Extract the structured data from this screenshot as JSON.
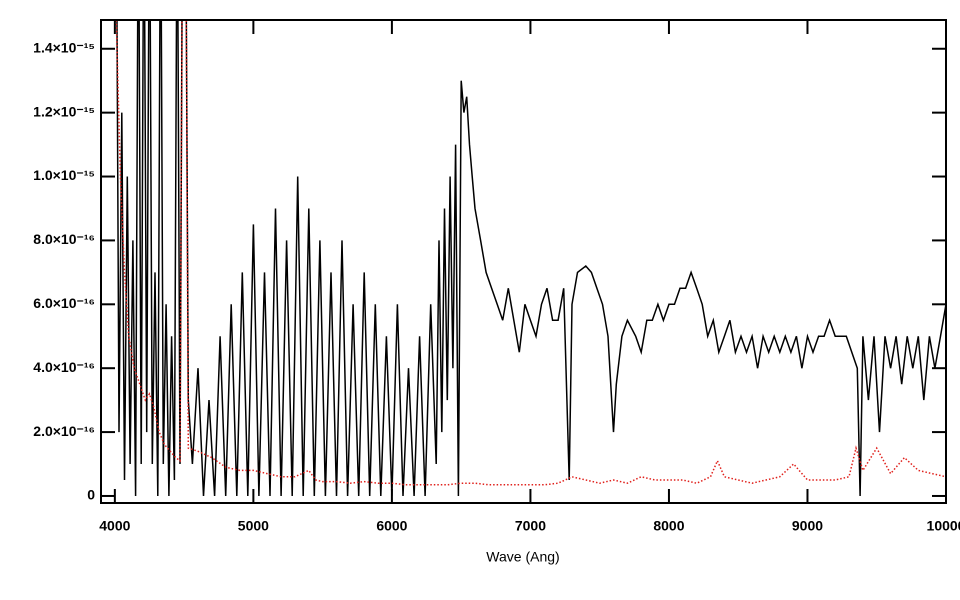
{
  "chart_data": {
    "type": "line",
    "x_label": "Wave (Ang)",
    "xlim": [
      3900,
      10000
    ],
    "ylim": [
      -2.2e-17,
      1.49e-15
    ],
    "xticks": [
      4000,
      5000,
      6000,
      7000,
      8000,
      9000,
      10000
    ],
    "yticks": [
      {
        "value": 0,
        "label": "0"
      },
      {
        "value": 2e-16,
        "label": "2.0×10⁻¹⁶"
      },
      {
        "value": 4e-16,
        "label": "4.0×10⁻¹⁶"
      },
      {
        "value": 6e-16,
        "label": "6.0×10⁻¹⁶"
      },
      {
        "value": 8e-16,
        "label": "8.0×10⁻¹⁶"
      },
      {
        "value": 1e-15,
        "label": "1.0×10⁻¹⁵"
      },
      {
        "value": 1.2e-15,
        "label": "1.2×10⁻¹⁵"
      },
      {
        "value": 1.4e-15,
        "label": "1.4×10⁻¹⁵"
      }
    ],
    "series": [
      {
        "color": "#000000",
        "dash": false,
        "x": [
          4010,
          4030,
          4050,
          4070,
          4090,
          4110,
          4130,
          4150,
          4170,
          4190,
          4210,
          4230,
          4250,
          4270,
          4290,
          4310,
          4330,
          4350,
          4370,
          4390,
          4410,
          4430,
          4450,
          4470,
          4490,
          4510,
          4530,
          4560,
          4600,
          4640,
          4680,
          4720,
          4760,
          4800,
          4840,
          4880,
          4920,
          4960,
          5000,
          5040,
          5080,
          5120,
          5160,
          5200,
          5240,
          5280,
          5320,
          5360,
          5400,
          5440,
          5480,
          5520,
          5560,
          5600,
          5640,
          5680,
          5720,
          5760,
          5800,
          5840,
          5880,
          5920,
          5960,
          6000,
          6040,
          6080,
          6120,
          6160,
          6200,
          6240,
          6280,
          6320,
          6340,
          6360,
          6380,
          6400,
          6420,
          6440,
          6460,
          6480,
          6500,
          6520,
          6540,
          6560,
          6580,
          6600,
          6640,
          6680,
          6720,
          6760,
          6800,
          6840,
          6880,
          6920,
          6960,
          7000,
          7040,
          7080,
          7120,
          7160,
          7200,
          7240,
          7280,
          7300,
          7340,
          7400,
          7440,
          7480,
          7520,
          7560,
          7600,
          7620,
          7660,
          7700,
          7760,
          7800,
          7840,
          7880,
          7920,
          7960,
          8000,
          8040,
          8080,
          8120,
          8160,
          8200,
          8240,
          8280,
          8320,
          8360,
          8400,
          8440,
          8480,
          8520,
          8560,
          8600,
          8640,
          8680,
          8720,
          8760,
          8800,
          8840,
          8880,
          8920,
          8960,
          9000,
          9040,
          9080,
          9120,
          9160,
          9200,
          9240,
          9280,
          9320,
          9360,
          9380,
          9400,
          9440,
          9480,
          9520,
          9560,
          9600,
          9640,
          9680,
          9720,
          9760,
          9800,
          9840,
          9880,
          9920,
          9960,
          10000
        ],
        "values": [
          2e-15,
          2e-16,
          1.2e-15,
          5e-17,
          1e-15,
          1e-16,
          8e-16,
          0,
          2e-15,
          1e-16,
          2e-15,
          2e-16,
          2e-15,
          1e-16,
          7e-16,
          0,
          2e-15,
          1e-16,
          6e-16,
          0,
          5e-16,
          5e-17,
          2e-15,
          1e-16,
          2e-15,
          2e-15,
          3e-16,
          1e-16,
          4e-16,
          0,
          3e-16,
          0,
          5e-16,
          0,
          6e-16,
          0,
          7e-16,
          0,
          8.5e-16,
          0,
          7e-16,
          0,
          9e-16,
          0,
          8e-16,
          0,
          1e-15,
          0,
          9e-16,
          0,
          8e-16,
          0,
          7e-16,
          0,
          8e-16,
          0,
          6e-16,
          0,
          7e-16,
          0,
          6e-16,
          0,
          5e-16,
          0,
          6e-16,
          0,
          4e-16,
          0,
          5e-16,
          0,
          6e-16,
          1e-16,
          8e-16,
          2e-16,
          9e-16,
          3e-16,
          1e-15,
          4e-16,
          1.1e-15,
          0,
          1.3e-15,
          1.2e-15,
          1.25e-15,
          1.1e-15,
          1e-15,
          9e-16,
          8e-16,
          7e-16,
          6.5e-16,
          6e-16,
          5.5e-16,
          6.5e-16,
          5.5e-16,
          4.5e-16,
          6e-16,
          5.5e-16,
          5e-16,
          6e-16,
          6.5e-16,
          5.5e-16,
          5.5e-16,
          6.5e-16,
          5e-17,
          6e-16,
          7e-16,
          7.2e-16,
          7e-16,
          6.5e-16,
          6e-16,
          5e-16,
          2e-16,
          3.5e-16,
          5e-16,
          5.5e-16,
          5e-16,
          4.5e-16,
          5.5e-16,
          5.5e-16,
          6e-16,
          5.5e-16,
          6e-16,
          6e-16,
          6.5e-16,
          6.5e-16,
          7e-16,
          6.5e-16,
          6e-16,
          5e-16,
          5.5e-16,
          4.5e-16,
          5e-16,
          5.5e-16,
          4.5e-16,
          5e-16,
          4.5e-16,
          5e-16,
          4e-16,
          5e-16,
          4.5e-16,
          5e-16,
          4.5e-16,
          5e-16,
          4.5e-16,
          5e-16,
          4e-16,
          5e-16,
          4.5e-16,
          5e-16,
          5e-16,
          5.5e-16,
          5e-16,
          5e-16,
          5e-16,
          4.5e-16,
          4e-16,
          0,
          5e-16,
          3e-16,
          5e-16,
          2e-16,
          5e-16,
          4e-16,
          5e-16,
          3.5e-16,
          5e-16,
          4e-16,
          5e-16,
          3e-16,
          5e-16,
          4e-16,
          5e-16,
          6e-16
        ]
      },
      {
        "color": "#e0201b",
        "dash": true,
        "x": [
          4010,
          4040,
          4070,
          4100,
          4140,
          4180,
          4220,
          4250,
          4280,
          4320,
          4360,
          4400,
          4440,
          4470,
          4490,
          4510,
          4530,
          4600,
          4700,
          4800,
          4900,
          5000,
          5100,
          5200,
          5300,
          5400,
          5450,
          5500,
          5600,
          5700,
          5800,
          5900,
          6000,
          6100,
          6200,
          6300,
          6400,
          6500,
          6600,
          6700,
          6800,
          6900,
          7000,
          7100,
          7200,
          7300,
          7400,
          7500,
          7600,
          7700,
          7800,
          7900,
          8000,
          8100,
          8200,
          8300,
          8350,
          8400,
          8500,
          8600,
          8700,
          8800,
          8900,
          9000,
          9100,
          9200,
          9300,
          9350,
          9400,
          9500,
          9600,
          9700,
          9800,
          9900,
          10000
        ],
        "values": [
          1.5e-15,
          1e-15,
          7e-16,
          5e-16,
          4e-16,
          3.5e-16,
          3e-16,
          3.2e-16,
          2.8e-16,
          2e-16,
          1.6e-16,
          1.4e-16,
          1.2e-16,
          1.1e-16,
          2e-15,
          2e-15,
          1.5e-16,
          1.4e-16,
          1.2e-16,
          9e-17,
          8e-17,
          8e-17,
          7e-17,
          6e-17,
          6e-17,
          8e-17,
          5e-17,
          4.5e-17,
          4.5e-17,
          4e-17,
          4.5e-17,
          4e-17,
          4e-17,
          3.5e-17,
          3.5e-17,
          3.5e-17,
          3.5e-17,
          4e-17,
          4e-17,
          3.5e-17,
          3.5e-17,
          3.5e-17,
          3.5e-17,
          3.5e-17,
          4e-17,
          6e-17,
          5e-17,
          4e-17,
          5e-17,
          4e-17,
          6e-17,
          5e-17,
          5e-17,
          5e-17,
          4e-17,
          6e-17,
          1.1e-16,
          6e-17,
          5e-17,
          4e-17,
          5e-17,
          6e-17,
          1e-16,
          5e-17,
          5e-17,
          5e-17,
          6e-17,
          1.5e-16,
          8e-17,
          1.5e-16,
          7e-17,
          1.2e-16,
          8e-17,
          7e-17,
          6e-17
        ]
      }
    ]
  }
}
